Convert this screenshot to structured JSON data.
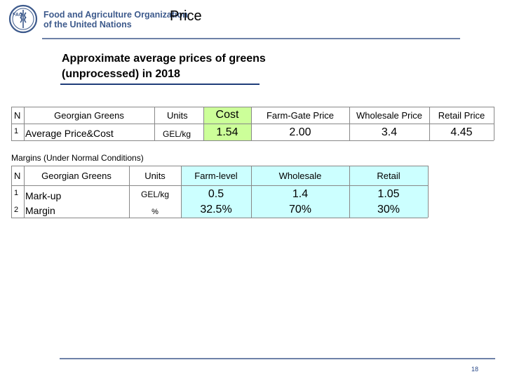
{
  "header": {
    "org_name_line1": "Food and Agriculture Organization",
    "org_name_line2": "of the United Nations",
    "logo_text": "FAO",
    "page_title": "Price"
  },
  "section": {
    "heading_line1": "Approximate average prices of greens",
    "heading_line2": "(unprocessed) in 2018"
  },
  "prices_table": {
    "headers": [
      "N",
      "Georgian Greens",
      "Units",
      "Cost",
      "Farm-Gate Price",
      "Wholesale Price",
      "Retail Price"
    ],
    "rows": [
      {
        "n": "1",
        "item": "Average Price&Cost",
        "units": "GEL/kg",
        "cost": "1.54",
        "farm_gate": "2.00",
        "wholesale": "3.4",
        "retail": "4.45"
      }
    ]
  },
  "margins": {
    "title": "Margins (Under Normal Conditions)",
    "headers": [
      "N",
      "Georgian Greens",
      "Units",
      "Farm-level",
      "Wholesale",
      "Retail"
    ],
    "rows": [
      {
        "n": "1",
        "item": "Mark-up",
        "units": "GEL/kg",
        "farm_level": "0.5",
        "wholesale": "1.4",
        "retail": "1.05"
      },
      {
        "n": "2",
        "item": "Margin",
        "units": "%",
        "farm_level": "32.5%",
        "wholesale": "70%",
        "retail": "30%"
      }
    ]
  },
  "footer": {
    "page_number": "18"
  },
  "colors": {
    "green": "#ccff99",
    "cyan": "#ccffff",
    "brand_blue": "#3d5a8c"
  }
}
